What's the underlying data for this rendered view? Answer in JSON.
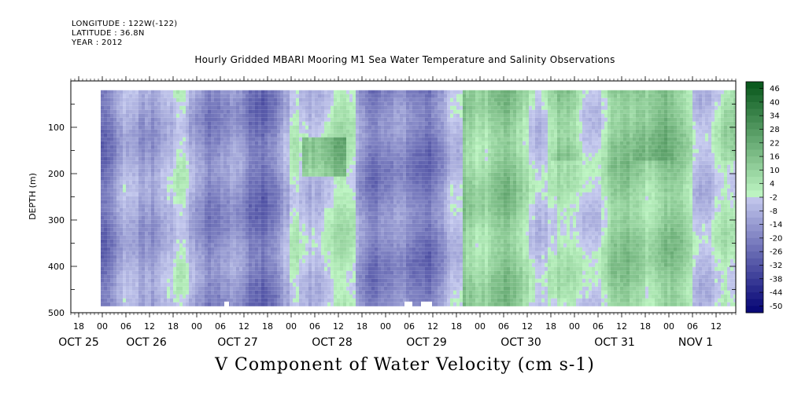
{
  "header": {
    "longitude": "LONGITUDE : 122W(-122)",
    "latitude": "LATITUDE : 36.8N",
    "year": "YEAR : 2012"
  },
  "chart_data": {
    "type": "heatmap",
    "title": "Hourly Gridded MBARI Mooring M1 Sea Water Temperature and Salinity Observations",
    "variable_title": "V Component of Water Velocity (cm s-1)",
    "ylabel": "DEPTH (m)",
    "xlabel": "",
    "ylim": [
      500,
      0
    ],
    "y_ticks": [
      100,
      200,
      300,
      400,
      500
    ],
    "x_hour_labels": [
      "18",
      "00",
      "06",
      "12",
      "18",
      "00",
      "06",
      "12",
      "18",
      "00",
      "06",
      "12",
      "18",
      "00",
      "06",
      "12",
      "18",
      "00",
      "06",
      "12",
      "18",
      "00",
      "06",
      "12",
      "18",
      "00",
      "06",
      "12"
    ],
    "x_day_labels": [
      "OCT 25",
      "OCT 26",
      "OCT 27",
      "OCT 28",
      "OCT 29",
      "OCT 30",
      "OCT 31",
      "NOV  1"
    ],
    "x_range_hours": [
      "2012-10-25 15:00",
      "2012-11-01 19:00"
    ],
    "data_range_depth_m": [
      20,
      485
    ],
    "colorbar": {
      "labels": [
        "46",
        "40",
        "34",
        "28",
        "22",
        "16",
        "10",
        "4",
        "-2",
        "-8",
        "-14",
        "-20",
        "-26",
        "-32",
        "-38",
        "-44",
        "-50"
      ],
      "range": [
        -50,
        50
      ],
      "step": 3,
      "negative_color": "#2f4dd6",
      "positive_color": "#1a9a34"
    },
    "field_summary": [
      {
        "period": "OCT 25 18 - OCT 28 00",
        "dominant_sign": "negative",
        "typical_value": -15
      },
      {
        "period": "OCT 28 00 - OCT 28 12",
        "dominant_sign": "mixed",
        "note": "positive patch near 150-200 m",
        "typical_value": 5
      },
      {
        "period": "OCT 28 12 - OCT 29 18",
        "dominant_sign": "negative",
        "typical_value": -15
      },
      {
        "period": "OCT 29 18 - NOV 1 18",
        "dominant_sign": "positive",
        "note": "strong positive bands near surface",
        "typical_value": 15
      }
    ]
  }
}
